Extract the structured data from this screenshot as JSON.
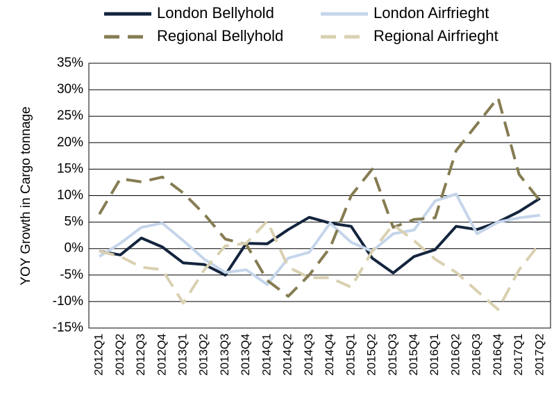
{
  "chart_data": {
    "type": "line",
    "y_label": "YOY Growth in Cargo tonnage",
    "categories": [
      "2012Q1",
      "2012Q2",
      "2012Q3",
      "2012Q4",
      "2013Q1",
      "2013Q2",
      "2013Q3",
      "2013Q4",
      "2014Q1",
      "2014Q2",
      "2014Q3",
      "2014Q4",
      "2015Q1",
      "2015Q2",
      "2015Q3",
      "2015Q4",
      "2016Q1",
      "2016Q2",
      "2016Q3",
      "2016Q4",
      "2017Q1",
      "2017Q2"
    ],
    "series": [
      {
        "name": "London Bellyhold",
        "color": "#13243d",
        "dash": false,
        "values": [
          -0.5,
          -1.2,
          2.0,
          0.3,
          -2.7,
          -3.0,
          -5.0,
          1.0,
          0.9,
          3.6,
          5.9,
          4.8,
          4.2,
          -1.8,
          -4.6,
          -1.5,
          -0.2,
          4.2,
          3.6,
          5.0,
          7.0,
          9.5
        ]
      },
      {
        "name": "London Airfrieght",
        "color": "#c5d5ea",
        "dash": false,
        "values": [
          -1.5,
          1.0,
          4.0,
          4.8,
          1.5,
          -2.0,
          -4.5,
          -4.0,
          -6.8,
          -1.8,
          -0.7,
          4.8,
          1.2,
          -0.5,
          2.8,
          3.5,
          9.0,
          10.3,
          2.8,
          5.0,
          5.8,
          6.3
        ]
      },
      {
        "name": "Regional Bellyhold",
        "color": "#857c52",
        "dash": true,
        "values": [
          6.5,
          13.2,
          12.6,
          13.5,
          10.5,
          6.5,
          1.8,
          0.8,
          -6.0,
          -9.0,
          -5.0,
          0.2,
          10.0,
          15.0,
          4.0,
          5.5,
          5.8,
          18.5,
          23.5,
          28.5,
          14.0,
          9.0
        ]
      },
      {
        "name": "Regional Airfrieght",
        "color": "#d9d0b1",
        "dash": true,
        "values": [
          -0.5,
          -1.5,
          -3.5,
          -4.0,
          -10.3,
          -4.0,
          0.5,
          1.0,
          5.2,
          -3.5,
          -5.5,
          -5.5,
          -7.3,
          -0.5,
          4.5,
          1.5,
          -2.0,
          -4.5,
          -8.0,
          -11.5,
          -4.0,
          1.0
        ]
      }
    ],
    "ylim": [
      -15,
      35
    ],
    "yticks": [
      {
        "value": -15,
        "label": "-15%"
      },
      {
        "value": -10,
        "label": "-10%"
      },
      {
        "value": -5,
        "label": "-5%"
      },
      {
        "value": 0,
        "label": "0%"
      },
      {
        "value": 5,
        "label": "5%"
      },
      {
        "value": 10,
        "label": "10%"
      },
      {
        "value": 15,
        "label": "15%"
      },
      {
        "value": 20,
        "label": "20%"
      },
      {
        "value": 25,
        "label": "25%"
      },
      {
        "value": 30,
        "label": "30%"
      },
      {
        "value": 35,
        "label": "35%"
      }
    ],
    "grid": true
  }
}
